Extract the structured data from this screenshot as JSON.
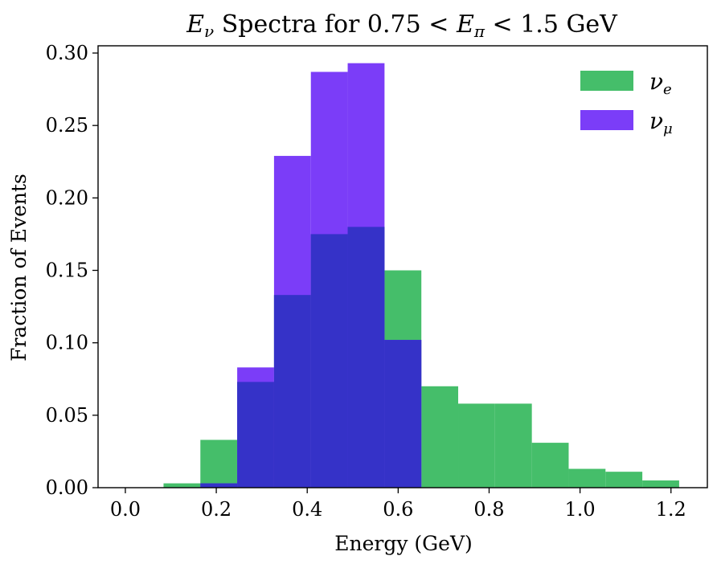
{
  "chart_data": {
    "type": "bar",
    "title": {
      "var": "E",
      "var_sub": "ν",
      "mid": " Spectra for 0.75 < ",
      "var2": "E",
      "var2_sub": "π",
      "tail": " < 1.5 GeV"
    },
    "xlabel": "Energy (GeV)",
    "ylabel": "Fraction of Events",
    "xlim": [
      -0.06,
      1.28
    ],
    "ylim": [
      0,
      0.305
    ],
    "xticks": [
      0.0,
      0.2,
      0.4,
      0.6,
      0.8,
      1.0,
      1.2
    ],
    "xtick_labels": [
      "0.0",
      "0.2",
      "0.4",
      "0.6",
      "0.8",
      "1.0",
      "1.2"
    ],
    "yticks": [
      0.0,
      0.05,
      0.1,
      0.15,
      0.2,
      0.25,
      0.3
    ],
    "ytick_labels": [
      "0.00",
      "0.05",
      "0.10",
      "0.15",
      "0.20",
      "0.25",
      "0.30"
    ],
    "grid": false,
    "legend_position": "top-right",
    "series": [
      {
        "name": "ν",
        "name_sub": "e",
        "color": "#45BE6A",
        "bin_edges": [
          0.084,
          0.165,
          0.246,
          0.327,
          0.408,
          0.489,
          0.57,
          0.651,
          0.732,
          0.813,
          0.894,
          0.975,
          1.056,
          1.137,
          1.218
        ],
        "values": [
          0.003,
          0.033,
          0.073,
          0.133,
          0.175,
          0.18,
          0.15,
          0.07,
          0.058,
          0.058,
          0.031,
          0.013,
          0.011,
          0.005
        ]
      },
      {
        "name": "ν",
        "name_sub": "μ",
        "color": "#7B3DF8",
        "bin_edges": [
          0.165,
          0.246,
          0.327,
          0.408,
          0.489,
          0.57,
          0.651
        ],
        "values": [
          0.003,
          0.083,
          0.229,
          0.287,
          0.293,
          0.102
        ]
      }
    ],
    "overlap_color": "#3532C8"
  }
}
